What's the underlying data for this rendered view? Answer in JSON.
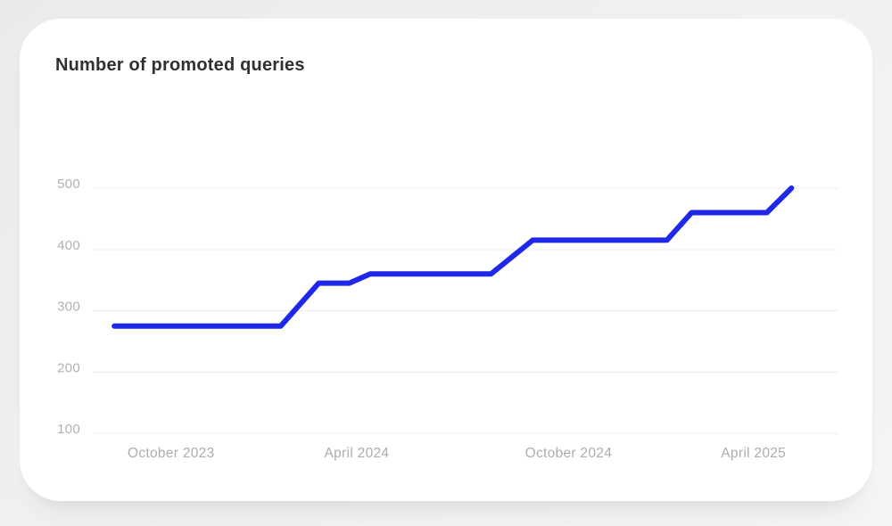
{
  "card": {
    "title": "Number of promoted queries"
  },
  "chart_data": {
    "type": "line",
    "title": "Number of promoted queries",
    "xlabel": "",
    "ylabel": "",
    "ylim": [
      100,
      500
    ],
    "grid": "horizontal-only",
    "legend": "none",
    "line_color": "#1f27e9",
    "grid_color": "#ececeb",
    "tick_label_color": "#b3b1b0",
    "y_ticks": [
      500,
      400,
      300,
      200,
      100
    ],
    "x_ticks": [
      {
        "label": "October 2023",
        "x": 0.105
      },
      {
        "label": "April 2024",
        "x": 0.354
      },
      {
        "label": "October 2024",
        "x": 0.638
      },
      {
        "label": "April 2025",
        "x": 0.886
      }
    ],
    "series": [
      {
        "name": "Number of promoted queries",
        "color": "#1f27e9",
        "points": [
          {
            "x": 0.029,
            "value": 275
          },
          {
            "x": 0.252,
            "value": 275
          },
          {
            "x": 0.303,
            "value": 345
          },
          {
            "x": 0.344,
            "value": 345
          },
          {
            "x": 0.372,
            "value": 360
          },
          {
            "x": 0.534,
            "value": 360
          },
          {
            "x": 0.59,
            "value": 415
          },
          {
            "x": 0.77,
            "value": 415
          },
          {
            "x": 0.803,
            "value": 460
          },
          {
            "x": 0.904,
            "value": 460
          },
          {
            "x": 0.937,
            "value": 500
          }
        ]
      }
    ]
  }
}
